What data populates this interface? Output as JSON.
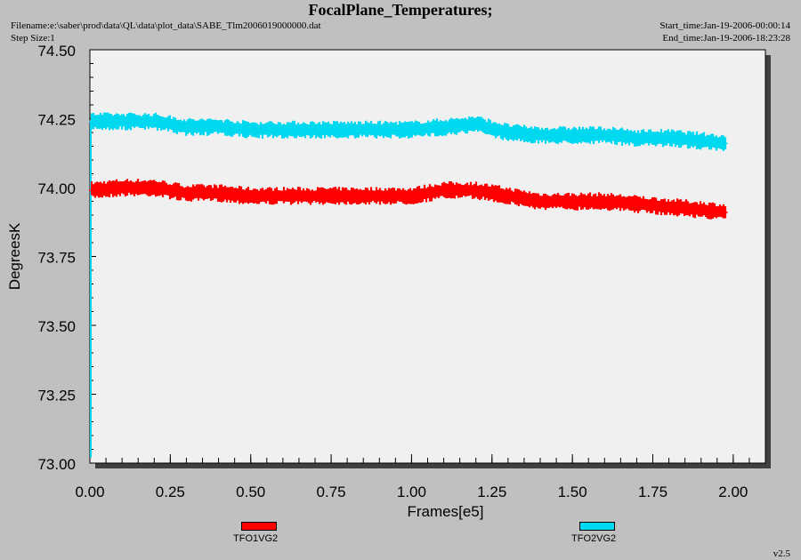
{
  "header": {
    "title": "FocalPlane_Temperatures;",
    "filename": "Filename:e:\\saber\\prod\\data\\QL\\data\\plot_data\\SABE_Tlm2006019000000.dat",
    "step_size": "Step Size:1",
    "start_time": "Start_time:Jan-19-2006-00:00:14",
    "end_time": "End_time:Jan-19-2006-18:23:28"
  },
  "footer": {
    "version": "v2.5"
  },
  "chart_data": {
    "type": "line",
    "title": "FocalPlane_Temperatures;",
    "xlabel": "Frames[e5]",
    "ylabel": "DegreesK",
    "xlim": [
      0.0,
      2.1
    ],
    "ylim": [
      73.0,
      74.5
    ],
    "x_ticks": [
      "0.00",
      "0.25",
      "0.50",
      "0.75",
      "1.00",
      "1.25",
      "1.50",
      "1.75",
      "2.00"
    ],
    "y_ticks": [
      "73.00",
      "73.25",
      "73.50",
      "73.75",
      "74.00",
      "74.25",
      "74.50"
    ],
    "grid": false,
    "legend_position": "bottom",
    "x": [
      0.0,
      0.1,
      0.2,
      0.3,
      0.4,
      0.5,
      0.6,
      0.7,
      0.8,
      0.9,
      1.0,
      1.1,
      1.2,
      1.3,
      1.4,
      1.5,
      1.6,
      1.7,
      1.8,
      1.9,
      1.98
    ],
    "series": [
      {
        "name": "TFO1VG2",
        "color": "#ff0000",
        "values": [
          73.99,
          74.0,
          74.0,
          73.98,
          73.98,
          73.97,
          73.97,
          73.97,
          73.97,
          73.97,
          73.97,
          73.99,
          73.99,
          73.97,
          73.95,
          73.95,
          73.95,
          73.94,
          73.93,
          73.92,
          73.91
        ]
      },
      {
        "name": "TFO2VG2",
        "color": "#00d8f0",
        "values": [
          74.24,
          74.24,
          74.24,
          74.22,
          74.22,
          74.21,
          74.21,
          74.21,
          74.21,
          74.21,
          74.21,
          74.22,
          74.23,
          74.2,
          74.19,
          74.19,
          74.19,
          74.18,
          74.18,
          74.17,
          74.16
        ]
      }
    ]
  }
}
